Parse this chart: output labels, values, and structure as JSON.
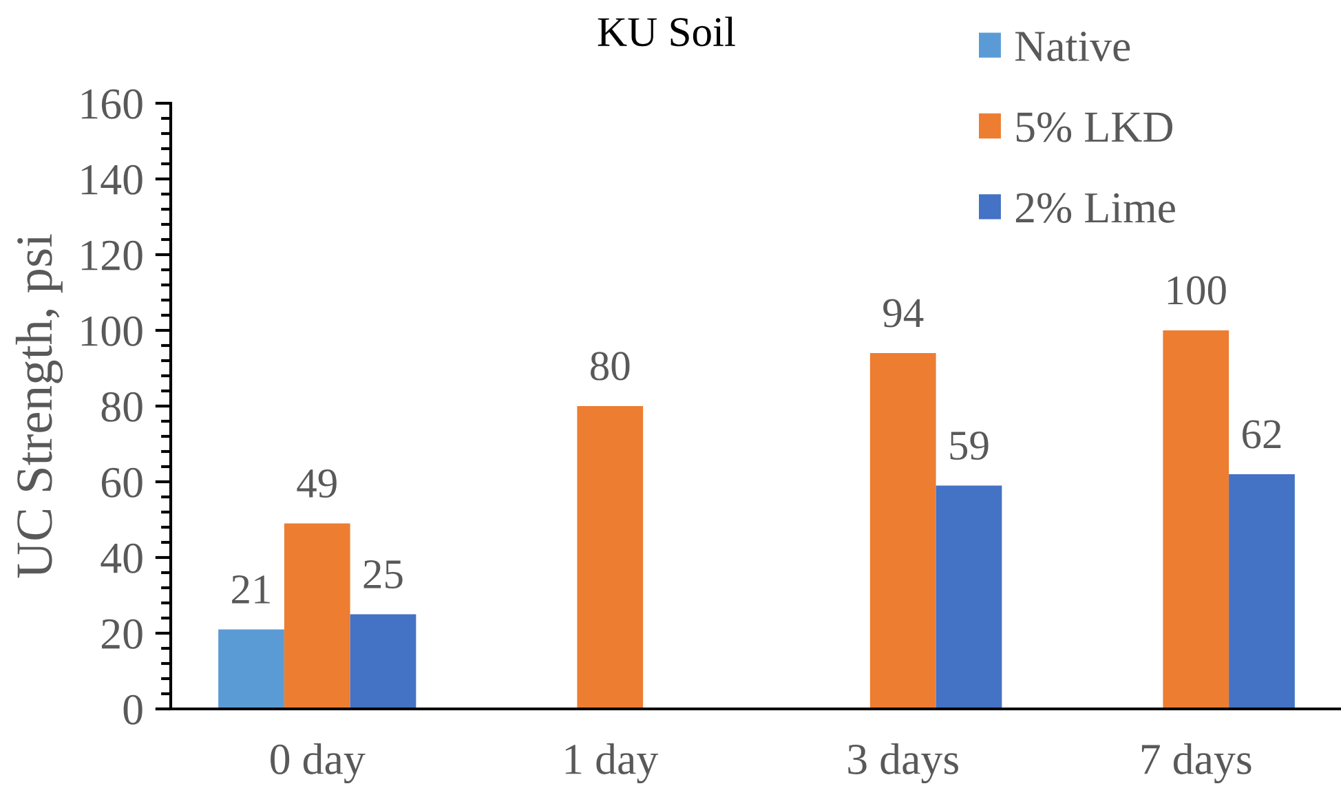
{
  "chart_data": {
    "type": "bar",
    "title": "KU Soil",
    "ylabel": "UC Strength, psi",
    "categories": [
      "0 day",
      "1 day",
      "3 days",
      "7 days"
    ],
    "series": [
      {
        "name": "Native",
        "color": "#5b9bd5",
        "values": [
          21,
          null,
          null,
          null
        ]
      },
      {
        "name": "5% LKD",
        "color": "#ed7d31",
        "values": [
          49,
          80,
          94,
          100
        ]
      },
      {
        "name": "2% Lime",
        "color": "#4472c4",
        "values": [
          25,
          null,
          59,
          62
        ]
      }
    ],
    "ylim": [
      0,
      160
    ],
    "yticks": [
      0,
      {
        "value": 4,
        "label": null
      },
      {
        "value": 8,
        "label": null
      },
      {
        "value": 12,
        "label": null
      },
      {
        "value": 16,
        "label": null
      },
      20,
      {
        "value": 24,
        "label": null
      },
      {
        "value": 28,
        "label": null
      },
      {
        "value": 32,
        "label": null
      },
      {
        "value": 36,
        "label": null
      },
      40,
      {
        "value": 44,
        "label": null
      },
      {
        "value": 48,
        "label": null
      },
      {
        "value": 52,
        "label": null
      },
      {
        "value": 56,
        "label": null
      },
      60,
      {
        "value": 64,
        "label": null
      },
      {
        "value": 68,
        "label": null
      },
      {
        "value": 72,
        "label": null
      },
      {
        "value": 76,
        "label": null
      },
      80,
      {
        "value": 84,
        "label": null
      },
      {
        "value": 88,
        "label": null
      },
      {
        "value": 92,
        "label": null
      },
      {
        "value": 96,
        "label": null
      },
      100,
      {
        "value": 104,
        "label": null
      },
      {
        "value": 108,
        "label": null
      },
      {
        "value": 112,
        "label": null
      },
      {
        "value": 116,
        "label": null
      },
      120,
      {
        "value": 124,
        "label": null
      },
      {
        "value": 128,
        "label": null
      },
      {
        "value": 132,
        "label": null
      },
      {
        "value": 136,
        "label": null
      },
      140,
      {
        "value": 144,
        "label": null
      },
      {
        "value": 148,
        "label": null
      },
      {
        "value": 152,
        "label": null
      },
      {
        "value": 156,
        "label": null
      },
      160
    ],
    "grid": false,
    "legend": "top right",
    "data_labels": true
  }
}
